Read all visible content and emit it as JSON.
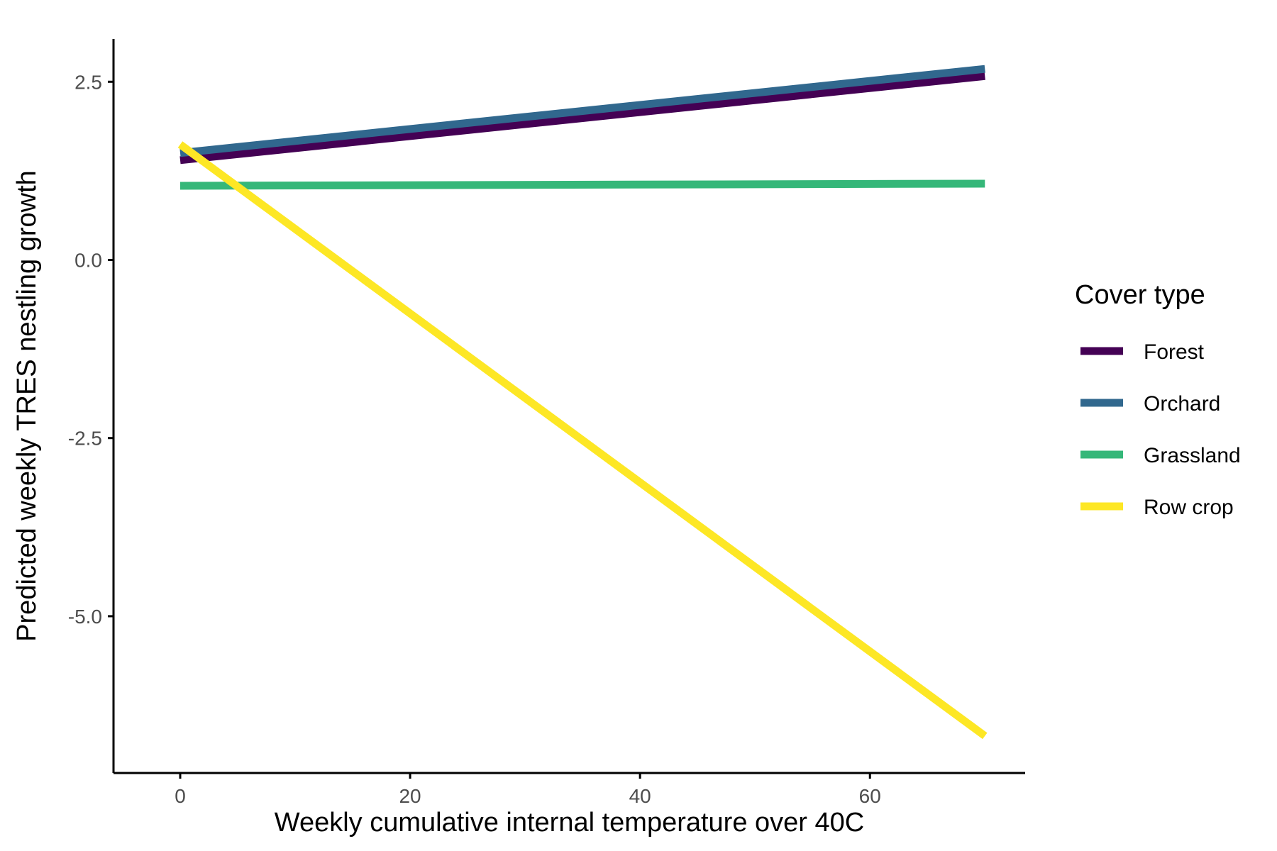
{
  "chart_data": {
    "type": "line",
    "title": "",
    "xlabel": "Weekly cumulative internal temperature over 40C",
    "ylabel": "Predicted weekly TRES nestling growth",
    "xlim": [
      -5.8,
      73.5
    ],
    "ylim": [
      -7.2,
      3.1
    ],
    "xticks": [
      0,
      20,
      40,
      60
    ],
    "xtick_labels": [
      "0",
      "20",
      "40",
      "60"
    ],
    "yticks": [
      2.5,
      0.0,
      -2.5,
      -5.0
    ],
    "ytick_labels": [
      "2.5",
      "0.0",
      "-2.5",
      "-5.0"
    ],
    "grid": false,
    "legend": {
      "title": "Cover type",
      "position": "right"
    },
    "series": [
      {
        "name": "Forest",
        "color": "#440154",
        "x": [
          0,
          70
        ],
        "y": [
          1.4,
          2.58
        ]
      },
      {
        "name": "Orchard",
        "color": "#31688E",
        "x": [
          0,
          70
        ],
        "y": [
          1.5,
          2.68
        ]
      },
      {
        "name": "Grassland",
        "color": "#35B779",
        "x": [
          0,
          70
        ],
        "y": [
          1.04,
          1.07
        ]
      },
      {
        "name": "Row crop",
        "color": "#FDE725",
        "x": [
          0,
          70
        ],
        "y": [
          1.62,
          -6.68
        ]
      }
    ]
  }
}
